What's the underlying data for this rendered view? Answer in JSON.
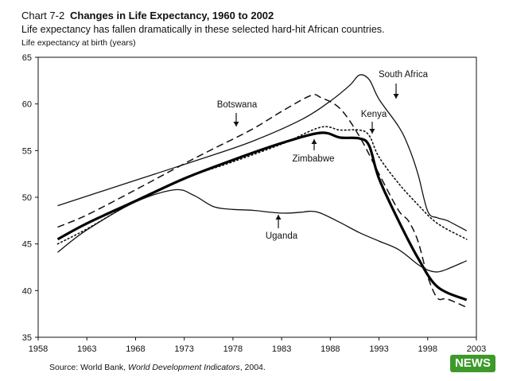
{
  "header": {
    "chart_number": "Chart 7-2",
    "title": "Changes in Life Expectancy, 1960 to 2002",
    "subtitle": "Life expectancy has fallen dramatically in these selected hard-hit African countries."
  },
  "footer": {
    "source_prefix": "Source:  World Bank, ",
    "source_italic": "World Development Indicators",
    "source_suffix": ",  2004."
  },
  "badge": {
    "text": "NEWS"
  },
  "chart_data": {
    "type": "line",
    "title": "Changes in Life Expectancy, 1960 to 2002",
    "xlabel": "",
    "ylabel": "Life expectancy at birth (years)",
    "xlim": [
      1958,
      2003
    ],
    "ylim": [
      35,
      65
    ],
    "xticks": [
      1958,
      1963,
      1968,
      1973,
      1978,
      1983,
      1988,
      1993,
      1998,
      2003
    ],
    "yticks": [
      35,
      40,
      45,
      50,
      55,
      60,
      65
    ],
    "grid": false,
    "series": [
      {
        "name": "South Africa",
        "color": "#111111",
        "style": "solid",
        "width": 1.3,
        "points": [
          [
            1960,
            49.1
          ],
          [
            1965,
            50.8
          ],
          [
            1970,
            52.5
          ],
          [
            1975,
            54.2
          ],
          [
            1980,
            56
          ],
          [
            1985,
            58.3
          ],
          [
            1988,
            60.3
          ],
          [
            1990,
            62
          ],
          [
            1991,
            63.1
          ],
          [
            1992,
            62.6
          ],
          [
            1993,
            60.5
          ],
          [
            1995,
            57.6
          ],
          [
            1996,
            55.5
          ],
          [
            1997,
            52.5
          ],
          [
            1998,
            48.5
          ],
          [
            1999,
            47.8
          ],
          [
            2000,
            47.5
          ],
          [
            2002,
            46.4
          ]
        ]
      },
      {
        "name": "Botswana",
        "color": "#111111",
        "style": "dashed",
        "width": 1.5,
        "points": [
          [
            1960,
            46.8
          ],
          [
            1963,
            48.1
          ],
          [
            1968,
            50.8
          ],
          [
            1973,
            53.6
          ],
          [
            1976,
            55.2
          ],
          [
            1980,
            57.3
          ],
          [
            1983,
            59.2
          ],
          [
            1986,
            60.9
          ],
          [
            1987,
            60.7
          ],
          [
            1989,
            59.5
          ],
          [
            1991,
            56.5
          ],
          [
            1993,
            52.5
          ],
          [
            1995,
            48.6
          ],
          [
            1996,
            47.5
          ],
          [
            1997,
            45.3
          ],
          [
            1998,
            41.5
          ],
          [
            1999,
            39.2
          ],
          [
            2000,
            39.1
          ],
          [
            2002,
            38.2
          ]
        ]
      },
      {
        "name": "Kenya",
        "color": "#111111",
        "style": "dotted",
        "width": 1.6,
        "points": [
          [
            1960,
            45
          ],
          [
            1963,
            46.6
          ],
          [
            1968,
            49.6
          ],
          [
            1973,
            52
          ],
          [
            1978,
            53.8
          ],
          [
            1983,
            55.7
          ],
          [
            1987,
            57.5
          ],
          [
            1989,
            57.2
          ],
          [
            1991,
            57.2
          ],
          [
            1992,
            56.6
          ],
          [
            1993,
            54.3
          ],
          [
            1995,
            51.5
          ],
          [
            1997,
            49.2
          ],
          [
            1999,
            47.2
          ],
          [
            2002,
            45.5
          ]
        ]
      },
      {
        "name": "Zimbabwe",
        "color": "#000000",
        "style": "solid",
        "width": 3.2,
        "points": [
          [
            1960,
            45.5
          ],
          [
            1963,
            47.2
          ],
          [
            1968,
            49.6
          ],
          [
            1973,
            52
          ],
          [
            1978,
            54
          ],
          [
            1983,
            55.8
          ],
          [
            1987,
            56.9
          ],
          [
            1989,
            56.4
          ],
          [
            1991,
            56.3
          ],
          [
            1992,
            55.5
          ],
          [
            1993,
            52
          ],
          [
            1995,
            47.5
          ],
          [
            1997,
            43.5
          ],
          [
            1999,
            40.4
          ],
          [
            2002,
            39
          ]
        ]
      },
      {
        "name": "Uganda",
        "color": "#111111",
        "style": "solid",
        "width": 1.3,
        "points": [
          [
            1960,
            44.1
          ],
          [
            1963,
            46.5
          ],
          [
            1968,
            49.5
          ],
          [
            1972,
            50.8
          ],
          [
            1974,
            50.2
          ],
          [
            1976,
            49
          ],
          [
            1978,
            48.7
          ],
          [
            1980,
            48.6
          ],
          [
            1983,
            48.3
          ],
          [
            1985,
            48.4
          ],
          [
            1986,
            48.5
          ],
          [
            1987,
            48.3
          ],
          [
            1989,
            47.3
          ],
          [
            1991,
            46.2
          ],
          [
            1993,
            45.3
          ],
          [
            1995,
            44.4
          ],
          [
            1997,
            42.8
          ],
          [
            1998,
            42.2
          ],
          [
            1999,
            42
          ],
          [
            2000,
            42.3
          ],
          [
            2002,
            43.2
          ]
        ]
      }
    ],
    "annotations": [
      {
        "text": "South Africa",
        "arrow": "down"
      },
      {
        "text": "Botswana",
        "arrow": "down"
      },
      {
        "text": "Kenya",
        "arrow": "down"
      },
      {
        "text": "Zimbabwe",
        "arrow": "up"
      },
      {
        "text": "Uganda",
        "arrow": "up"
      }
    ]
  }
}
